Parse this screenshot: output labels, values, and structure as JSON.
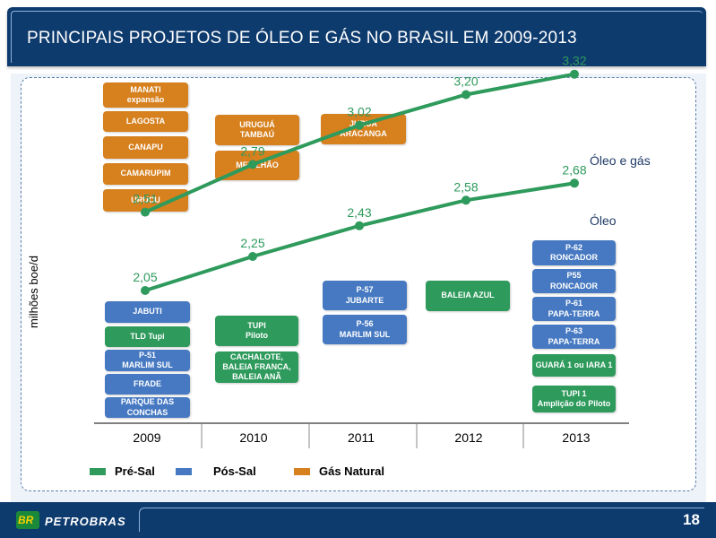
{
  "title": "PRINCIPAIS PROJETOS DE ÓLEO E GÁS NO BRASIL EM 2009-2013",
  "footer": {
    "logo": "BR",
    "brand": "PETROBRAS",
    "page": "18"
  },
  "colors": {
    "pre_sal": "#2e9a5c",
    "pos_sal": "#4679c2",
    "gas_natural": "#d6801e",
    "header": "#0e3b6e"
  },
  "chart_data": {
    "type": "line",
    "ylabel": "milhões boe/d",
    "xlabel": "",
    "categories": [
      "2009",
      "2010",
      "2011",
      "2012",
      "2013"
    ],
    "series": [
      {
        "name": "Óleo e gás",
        "values": [
          2.51,
          2.79,
          3.02,
          3.2,
          3.32
        ],
        "labels": [
          "2,51",
          "2,79",
          "3,02",
          "3,20",
          "3,32"
        ]
      },
      {
        "name": "Óleo",
        "values": [
          2.05,
          2.25,
          2.43,
          2.58,
          2.68
        ],
        "labels": [
          "2,05",
          "2,25",
          "2,43",
          "2,58",
          "2,68"
        ]
      }
    ],
    "legend": [
      {
        "name": "Pré-Sal",
        "color": "#2e9a5c"
      },
      {
        "name": "Pós-Sal",
        "color": "#4679c2"
      },
      {
        "name": "Gás Natural",
        "color": "#d6801e"
      }
    ],
    "grid": false
  },
  "projects": {
    "gas_2009": [
      "MANATI\nexpansão",
      "LAGOSTA",
      "CANAPU",
      "CAMARUPIM",
      "URUCU"
    ],
    "gas_2010": [
      "URUGUÁ\nTAMBAÚ",
      "MEXILHÃO"
    ],
    "gas_2011": [
      "JURUÁ\nARACANGA"
    ],
    "oil_2009": [
      "JABUTI",
      "TLD Tupi",
      "P-51\nMARLIM SUL",
      "FRADE",
      "PARQUE DAS\nCONCHAS"
    ],
    "oil_2010": [
      "TUPI\nPiloto",
      "CACHALOTE,\nBALEIA FRANCA,\nBALEIA ANÃ"
    ],
    "oil_2011": [
      "P-57\nJUBARTE",
      "P-56\nMARLIM SUL"
    ],
    "oil_2012": [
      "BALEIA AZUL"
    ],
    "oil_2013": [
      "P-62\nRONCADOR",
      "P55\nRONCADOR",
      "P-61\nPAPA-TERRA",
      "P-63\nPAPA-TERRA",
      "GUARÁ 1 ou IARA 1",
      "TUPI 1\nAmplição do Piloto"
    ]
  }
}
